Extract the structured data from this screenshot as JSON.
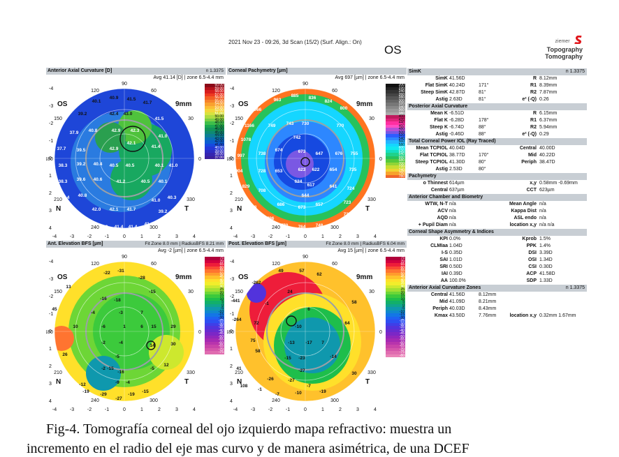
{
  "header": {
    "datetime": "2021 Nov 23 - 09:26, 3d Scan (15/2) (Surf. Align.: On)",
    "eye": "OS"
  },
  "brand": {
    "small": "ziemer",
    "line1": "Topography",
    "line2": "Tomography"
  },
  "maps": [
    {
      "title": "Anterior Axial Curvature [D]",
      "info": "n 1.3375",
      "avg": "Avg 41.14 [D] | zone 6.5-4.4 mm",
      "unit": "[D]",
      "scale": [
        "60.00",
        "59.00",
        "58.00",
        "57.00",
        "56.00",
        "55.00",
        "54.00",
        "53.00",
        "52.00",
        "51.00",
        "50.00",
        "49.00",
        "48.00",
        "47.00",
        "46.00",
        "45.00",
        "44.00",
        "43.00",
        "42.00",
        "41.00",
        "40.00",
        "39.00",
        "38.00",
        "37.00"
      ],
      "values": [
        "40.1",
        "40.9",
        "41.5",
        "41.7",
        "39.2",
        "42.4",
        "43.0",
        "41.5",
        "37.9",
        "40.8",
        "42.9",
        "42.3",
        "41.0",
        "37.7",
        "39.5",
        "42.9",
        "42.1",
        "41.4",
        "38.3",
        "39.2",
        "40.4",
        "40.5",
        "40.5",
        "40.1",
        "41.0",
        "38.3",
        "39.6",
        "40.6",
        "41.2",
        "40.5",
        "40.1",
        "38.4",
        "40.8",
        "41.0",
        "40.3",
        "39.5",
        "42.0",
        "42.1",
        "41.7",
        "39.2",
        "40.8",
        "41.3",
        "41.4",
        "41.4",
        "41.1"
      ]
    },
    {
      "title": "Corneal Pachymetry [µm]",
      "info": "",
      "avg": "Avg 697 [µm] | zone 6.5-4.4 mm",
      "unit": "[µm]",
      "scale": [
        "200",
        "220",
        "240",
        "260",
        "280",
        "300",
        "320",
        "340",
        "360",
        "380",
        "400",
        "420",
        "440",
        "460",
        "480",
        "500",
        "520",
        "540",
        "560",
        "580",
        "600",
        "620",
        "640",
        "660",
        "680",
        "700",
        "720",
        "740",
        "760",
        "780"
      ],
      "values": [
        "963",
        "885",
        "836",
        "824",
        "1066",
        "800",
        "1166",
        "749",
        "743",
        "730",
        "770",
        "1078",
        "742",
        "997",
        "738",
        "674",
        "673",
        "647",
        "676",
        "755",
        "904",
        "728",
        "653",
        "623",
        "622",
        "654",
        "735",
        "829",
        "624",
        "617",
        "641",
        "724",
        "708",
        "644",
        "723",
        "828",
        "686",
        "673",
        "657",
        "727",
        "796",
        "732",
        "770",
        "764",
        "748"
      ]
    },
    {
      "title": "Ant. Elevation BFS [µm]",
      "info": "Fit Zone 8.0 mm | RadiusBFS 8.21 mm",
      "avg": "Avg -2 [µm] | zone 6.5-4.4 mm",
      "unit": "[µm]",
      "scale": [
        "75",
        "70",
        "65",
        "60",
        "55",
        "50",
        "45",
        "40",
        "35",
        "30",
        "25",
        "20",
        "15",
        "10",
        "5",
        "0",
        "-5",
        "-10",
        "-15",
        "-20",
        "-25",
        "-30",
        "-35",
        "-40",
        "-45",
        "-50",
        "-55",
        "-60",
        "-65",
        "-70",
        "-75"
      ],
      "values": [
        "-22",
        "-31",
        "-28",
        "13",
        "-15",
        "-16",
        "-18",
        "-4",
        "-3",
        "7",
        "45",
        "10",
        "-6",
        "1",
        "6",
        "15",
        "29",
        "-2",
        "-4",
        "14",
        "30",
        "26",
        "-5",
        "-2",
        "-15",
        "-16",
        "12",
        "-9",
        "-4",
        "-5",
        "-12",
        "-19",
        "-29",
        "-27",
        "-19",
        "-15"
      ]
    },
    {
      "title": "Post. Elevation BFS [µm]",
      "info": "Fit Zone 8.0 mm | RadiusBFS 6.04 mm",
      "avg": "Avg 15 [µm] | zone 6.5-4.4 mm",
      "unit": "[µm]",
      "scale": [
        "75",
        "70",
        "65",
        "60",
        "55",
        "50",
        "45",
        "40",
        "35",
        "30",
        "25",
        "20",
        "15",
        "10",
        "5",
        "0",
        "-5",
        "-10",
        "-15",
        "-20",
        "-25",
        "-30",
        "-35",
        "-40",
        "-45",
        "-50",
        "-55",
        "-60",
        "-65",
        "-70",
        "-75",
        "-80"
      ],
      "values": [
        "49",
        "57",
        "62",
        "-262",
        "24",
        "-441",
        "-1",
        "58",
        "-264",
        "72",
        "-10",
        "6",
        "75",
        "64",
        "58",
        "-13",
        "-17",
        "7",
        "-15",
        "-23",
        "-14",
        "-27",
        "30",
        "-26",
        "-27",
        "-7",
        "-10",
        "-19",
        "108",
        "41",
        "-1",
        "-7"
      ]
    }
  ],
  "map_labels": {
    "os": "OS",
    "mm9": "9mm",
    "n": "N",
    "t": "T",
    "deg": [
      "90",
      "120",
      "60",
      "150",
      "30",
      "0",
      "180",
      "210",
      "330",
      "240",
      "300"
    ],
    "axis": [
      "-4",
      "-3",
      "-2",
      "-1",
      "0",
      "1",
      "2",
      "3",
      "4"
    ]
  },
  "table": [
    {
      "section": "SimK",
      "right": "n 1.3375",
      "rows": [
        [
          "SimK",
          "41.56D",
          "",
          "R",
          "8.12mm"
        ],
        [
          "Flat SimK",
          "40.24D",
          "171°",
          "R1",
          "8.39mm"
        ],
        [
          "Steep SimK",
          "42.87D",
          "81°",
          "R2",
          "7.87mm"
        ],
        [
          "Astig",
          "2.63D",
          "81°",
          "e² (-Q)",
          "0.26"
        ]
      ]
    },
    {
      "section": "Posterior Axial Curvature",
      "right": "",
      "rows": [
        [
          "Mean K",
          "-6.51D",
          "",
          "R",
          "6.15mm"
        ],
        [
          "Flat K",
          "-6.28D",
          "178°",
          "R1",
          "6.37mm"
        ],
        [
          "Steep K",
          "-6.74D",
          "88°",
          "R2",
          "5.94mm"
        ],
        [
          "Astig",
          "-0.46D",
          "88°",
          "e² (-Q)",
          "0.29"
        ]
      ]
    },
    {
      "section": "Total Corneal Power IOL (Ray Traced)",
      "right": "",
      "rows": [
        [
          "Mean TCPIOL",
          "40.04D",
          "",
          "Central",
          "40.00D"
        ],
        [
          "Flat TCPIOL",
          "38.77D",
          "170°",
          "Mid",
          "40.22D"
        ],
        [
          "Steep TCPIOL",
          "41.30D",
          "80°",
          "Periph",
          "38.47D"
        ],
        [
          "Astig",
          "2.53D",
          "80°",
          "",
          ""
        ]
      ]
    },
    {
      "section": "Pachymetry",
      "right": "",
      "rows": [
        [
          "o Thinnest",
          "614µm",
          "",
          "x,y",
          "0.58mm -0.69mm"
        ],
        [
          "Central",
          "637µm",
          "",
          "CCT",
          "623µm"
        ]
      ]
    },
    {
      "section": "Anterior Chamber and Biometry",
      "right": "",
      "rows": [
        [
          "WTW, N-T",
          "n/a",
          "",
          "Mean Angle",
          "n/a"
        ],
        [
          "ACV",
          "n/a",
          "",
          "Kappa Dist",
          "n/a"
        ],
        [
          "AQD",
          "n/a",
          "",
          "ASL endo",
          "n/a"
        ],
        [
          "+ Pupil Diam",
          "n/a",
          "",
          "location x,y",
          "n/a          n/a"
        ]
      ]
    },
    {
      "section": "Corneal Shape Asymmetry & Indices",
      "right": "",
      "rows": [
        [
          "KPI",
          "0.0%",
          "",
          "Kprob",
          "1.5%"
        ],
        [
          "CLMIaa",
          "1.04D",
          "",
          "PPK",
          "1.4%"
        ],
        [
          "I-S",
          "0.35D",
          "",
          "DSI",
          "3.39D"
        ],
        [
          "SAI",
          "1.01D",
          "",
          "OSI",
          "1.34D"
        ],
        [
          "SRI",
          "0.50D",
          "",
          "CSI",
          "0.30D"
        ],
        [
          "IAI",
          "0.39D",
          "",
          "ACP",
          "41.58D"
        ],
        [
          "AA",
          "100.0%",
          "",
          "SDP",
          "1.33D"
        ]
      ]
    },
    {
      "section": "Anterior Axial Curvature Zones",
      "right": "n 1.3375",
      "rows": [
        [
          "Central",
          "41.56D",
          "8.12mm",
          "",
          ""
        ],
        [
          "Mid",
          "41.09D",
          "8.21mm",
          "",
          ""
        ],
        [
          "Periph",
          "40.03D",
          "8.43mm",
          "",
          ""
        ],
        [
          "Kmax",
          "43.50D",
          "7.76mm",
          "location x,y",
          "0.32mm   1.67mm"
        ]
      ]
    }
  ],
  "caption": {
    "line1": "Fig-4. Tomografía corneal del ojo izquierdo mapa refractivo: muestra un",
    "line2": "incremento en el radio del eje mas curvo y de manera asimétrica, de una DCEF"
  }
}
